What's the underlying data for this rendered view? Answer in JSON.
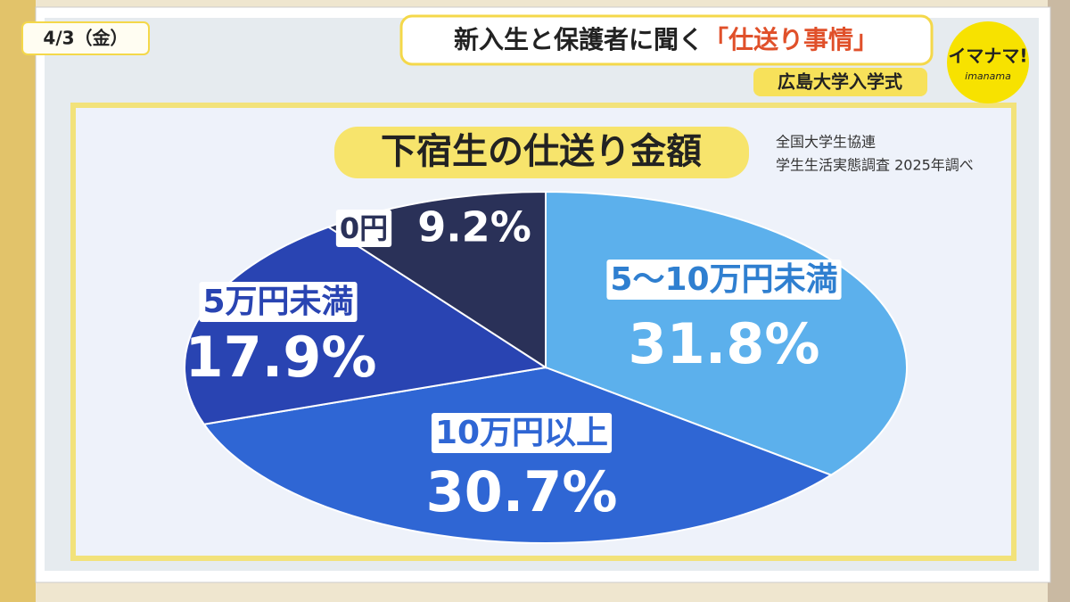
{
  "header": {
    "date": "4/3（金）",
    "headline_lead": "新入生と保護者に聞く",
    "headline_quote": "「仕送り事情」",
    "subtitle": "広島大学入学式",
    "logo": "イマナマ!",
    "logo_sub": "imanama"
  },
  "chart_data": {
    "type": "pie",
    "title": "下宿生の仕送り金額",
    "source": [
      "全国大学生協連",
      "学生生活実態調査 2025年調べ"
    ],
    "categories": [
      "5～10万円未満",
      "10万円以上",
      "5万円未満",
      "0円"
    ],
    "values": [
      31.8,
      30.7,
      17.9,
      9.2
    ],
    "value_labels": [
      "31.8%",
      "30.7%",
      "17.9%",
      "9.2%"
    ],
    "colors": [
      "#5cb0ec",
      "#2f66d4",
      "#2944b2",
      "#2a3158"
    ]
  }
}
